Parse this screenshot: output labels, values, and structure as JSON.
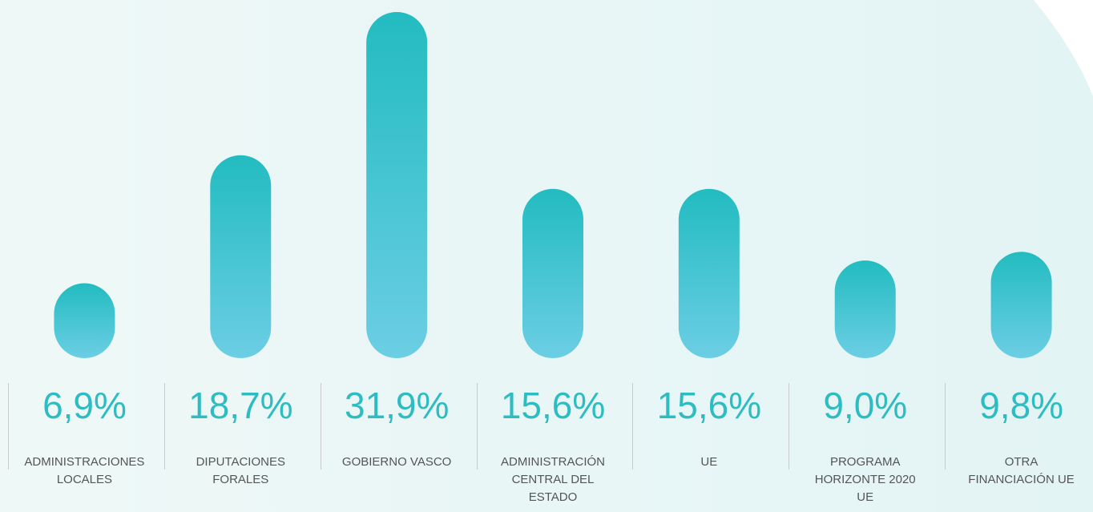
{
  "chart_data": {
    "type": "bar",
    "categories": [
      "ADMINISTRACIONES LOCALES",
      "DIPUTACIONES FORALES",
      "GOBIERNO VASCO",
      "ADMINISTRACIÓN CENTRAL DEL ESTADO",
      "UE",
      "PROGRAMA HORIZONTE 2020 UE",
      "OTRA FINANCIACIÓN UE"
    ],
    "values": [
      6.9,
      18.7,
      31.9,
      15.6,
      15.6,
      9.0,
      9.8
    ],
    "value_labels": [
      "6,9%",
      "18,7%",
      "31,9%",
      "15,6%",
      "15,6%",
      "9,0%",
      "9,8%"
    ],
    "color": "#22bcc0"
  }
}
